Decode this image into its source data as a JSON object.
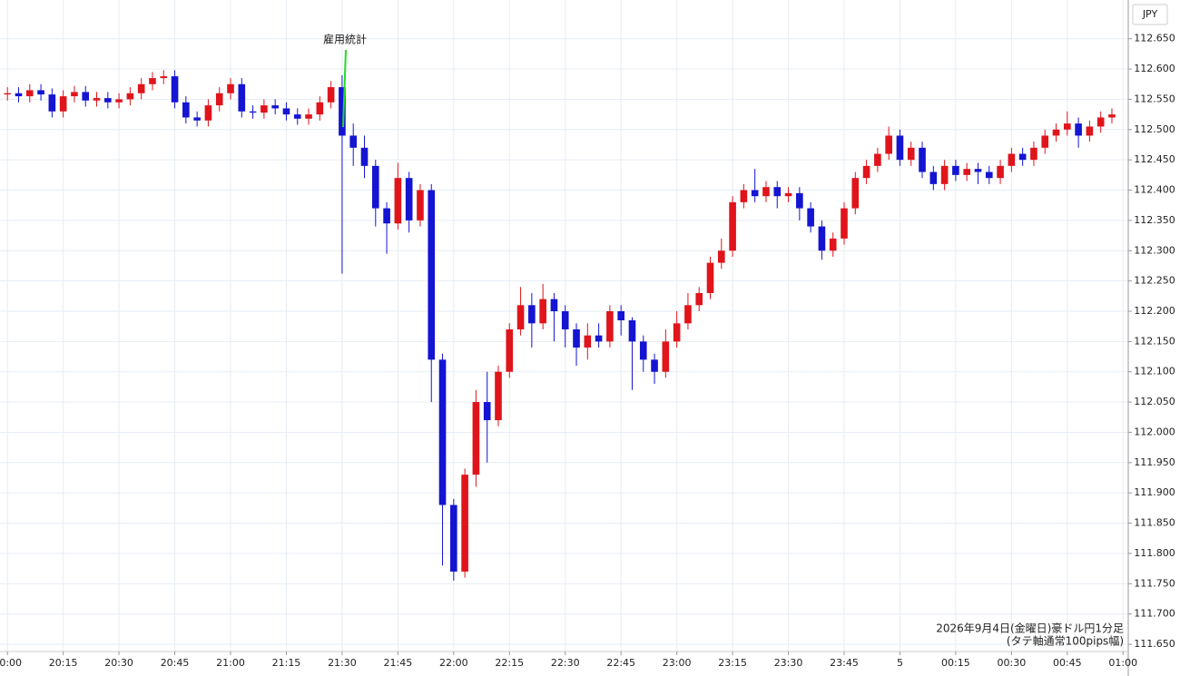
{
  "chart_data": {
    "type": "candlestick",
    "annotation": "雇用統計",
    "footnote": [
      "2026年9月4日(金曜日)豪ドル円1分足",
      "(タテ軸通常100pips幅)"
    ],
    "currency": "JPY",
    "up_color": "#e0141b",
    "down_color": "#1414d2",
    "annotation_color": "#22dd22",
    "grid": true,
    "xlim": [
      -2,
      301.4
    ],
    "ylim": [
      111.638,
      112.714
    ],
    "xticks": [
      {
        "value": 0,
        "label": "20:00"
      },
      {
        "value": 15,
        "label": "20:15"
      },
      {
        "value": 30,
        "label": "20:30"
      },
      {
        "value": 45,
        "label": "20:45"
      },
      {
        "value": 60,
        "label": "21:00"
      },
      {
        "value": 75,
        "label": "21:15"
      },
      {
        "value": 90,
        "label": "21:30"
      },
      {
        "value": 105,
        "label": "21:45"
      },
      {
        "value": 120,
        "label": "22:00"
      },
      {
        "value": 135,
        "label": "22:15"
      },
      {
        "value": 150,
        "label": "22:30"
      },
      {
        "value": 165,
        "label": "22:45"
      },
      {
        "value": 180,
        "label": "23:00"
      },
      {
        "value": 195,
        "label": "23:15"
      },
      {
        "value": 210,
        "label": "23:30"
      },
      {
        "value": 225,
        "label": "23:45"
      },
      {
        "value": 240,
        "label": "5"
      },
      {
        "value": 255,
        "label": "00:15"
      },
      {
        "value": 270,
        "label": "00:30"
      },
      {
        "value": 285,
        "label": "00:45"
      },
      {
        "value": 300,
        "label": "01:00"
      }
    ],
    "yticks": [
      {
        "value": 111.65,
        "label": "111.650"
      },
      {
        "value": 111.7,
        "label": "111.700"
      },
      {
        "value": 111.75,
        "label": "111.750"
      },
      {
        "value": 111.8,
        "label": "111.800"
      },
      {
        "value": 111.85,
        "label": "111.850"
      },
      {
        "value": 111.9,
        "label": "111.900"
      },
      {
        "value": 111.95,
        "label": "111.950"
      },
      {
        "value": 112.0,
        "label": "112.000"
      },
      {
        "value": 112.05,
        "label": "112.050"
      },
      {
        "value": 112.1,
        "label": "112.100"
      },
      {
        "value": 112.15,
        "label": "112.150"
      },
      {
        "value": 112.2,
        "label": "112.200"
      },
      {
        "value": 112.25,
        "label": "112.250"
      },
      {
        "value": 112.3,
        "label": "112.300"
      },
      {
        "value": 112.35,
        "label": "112.350"
      },
      {
        "value": 112.4,
        "label": "112.400"
      },
      {
        "value": 112.45,
        "label": "112.450"
      },
      {
        "value": 112.5,
        "label": "112.500"
      },
      {
        "value": 112.55,
        "label": "112.550"
      },
      {
        "value": 112.6,
        "label": "112.600"
      },
      {
        "value": 112.65,
        "label": "112.650"
      }
    ],
    "x": [
      0,
      3,
      6,
      9,
      12,
      15,
      18,
      21,
      24,
      27,
      30,
      33,
      36,
      39,
      42,
      45,
      48,
      51,
      54,
      57,
      60,
      63,
      66,
      69,
      72,
      75,
      78,
      81,
      84,
      87,
      90,
      93,
      96,
      99,
      102,
      105,
      108,
      111,
      114,
      117,
      120,
      123,
      126,
      129,
      132,
      135,
      138,
      141,
      144,
      147,
      150,
      153,
      156,
      159,
      162,
      165,
      168,
      171,
      174,
      177,
      180,
      183,
      186,
      189,
      192,
      195,
      198,
      201,
      204,
      207,
      210,
      213,
      216,
      219,
      222,
      225,
      228,
      231,
      234,
      237,
      240,
      243,
      246,
      249,
      252,
      255,
      258,
      261,
      264,
      267,
      270,
      273,
      276,
      279,
      282,
      285,
      288,
      291,
      294,
      297
    ],
    "open": [
      112.558,
      112.56,
      112.555,
      112.565,
      112.558,
      112.53,
      112.555,
      112.562,
      112.548,
      112.552,
      112.545,
      112.55,
      112.56,
      112.575,
      112.585,
      112.588,
      112.545,
      112.52,
      112.515,
      112.54,
      112.56,
      112.575,
      112.53,
      112.528,
      112.54,
      112.535,
      112.525,
      112.518,
      112.525,
      112.545,
      112.57,
      112.49,
      112.47,
      112.44,
      112.37,
      112.345,
      112.42,
      112.35,
      112.4,
      112.12,
      111.88,
      111.77,
      111.93,
      112.05,
      112.02,
      112.1,
      112.17,
      112.21,
      112.18,
      112.22,
      112.2,
      112.17,
      112.14,
      112.16,
      112.15,
      112.2,
      112.185,
      112.15,
      112.12,
      112.1,
      112.15,
      112.18,
      112.21,
      112.23,
      112.28,
      112.3,
      112.38,
      112.4,
      112.39,
      112.405,
      112.39,
      112.395,
      112.37,
      112.34,
      112.3,
      112.32,
      112.37,
      112.42,
      112.44,
      112.46,
      112.49,
      112.45,
      112.47,
      112.43,
      112.41,
      112.44,
      112.425,
      112.435,
      112.43,
      112.42,
      112.44,
      112.46,
      112.45,
      112.47,
      112.49,
      112.5,
      112.51,
      112.49,
      112.505,
      112.52
    ],
    "high": [
      112.57,
      112.57,
      112.575,
      112.575,
      112.568,
      112.565,
      112.572,
      112.572,
      112.562,
      112.562,
      112.56,
      112.57,
      112.585,
      112.595,
      112.598,
      112.598,
      112.555,
      112.53,
      112.55,
      112.57,
      112.585,
      112.585,
      112.54,
      112.55,
      112.55,
      112.545,
      112.535,
      112.535,
      112.555,
      112.58,
      112.59,
      112.51,
      112.49,
      112.45,
      112.38,
      112.445,
      112.43,
      112.41,
      112.41,
      112.13,
      111.89,
      111.94,
      112.07,
      112.1,
      112.11,
      112.18,
      112.24,
      112.23,
      112.245,
      112.23,
      112.21,
      112.18,
      112.18,
      112.18,
      112.21,
      112.21,
      112.19,
      112.16,
      112.13,
      112.17,
      112.2,
      112.23,
      112.24,
      112.29,
      112.32,
      112.39,
      112.41,
      112.435,
      112.415,
      112.415,
      112.405,
      112.405,
      112.38,
      112.35,
      112.33,
      112.38,
      112.43,
      112.45,
      112.47,
      112.505,
      112.5,
      112.48,
      112.48,
      112.44,
      112.45,
      112.45,
      112.445,
      112.445,
      112.44,
      112.45,
      112.47,
      112.47,
      112.48,
      112.5,
      112.51,
      112.53,
      112.52,
      112.515,
      112.53,
      112.535
    ],
    "low": [
      112.548,
      112.545,
      112.545,
      112.548,
      112.52,
      112.52,
      112.545,
      112.538,
      112.538,
      112.535,
      112.535,
      112.54,
      112.55,
      112.565,
      112.575,
      112.535,
      112.51,
      112.505,
      112.505,
      112.53,
      112.55,
      112.52,
      112.518,
      112.518,
      112.525,
      112.515,
      112.508,
      112.508,
      112.515,
      112.535,
      112.262,
      112.44,
      112.42,
      112.34,
      112.295,
      112.335,
      112.33,
      112.34,
      112.05,
      111.78,
      111.755,
      111.76,
      111.91,
      111.95,
      112.01,
      112.09,
      112.16,
      112.14,
      112.17,
      112.15,
      112.14,
      112.11,
      112.12,
      112.14,
      112.14,
      112.16,
      112.07,
      112.1,
      112.08,
      112.09,
      112.14,
      112.17,
      112.2,
      112.22,
      112.27,
      112.29,
      112.37,
      112.38,
      112.38,
      112.37,
      112.38,
      112.35,
      112.33,
      112.285,
      112.29,
      112.31,
      112.36,
      112.41,
      112.43,
      112.45,
      112.44,
      112.44,
      112.42,
      112.4,
      112.4,
      112.415,
      112.415,
      112.41,
      112.41,
      112.41,
      112.43,
      112.44,
      112.44,
      112.46,
      112.48,
      112.49,
      112.47,
      112.48,
      112.495,
      112.51
    ],
    "close": [
      112.56,
      112.555,
      112.565,
      112.558,
      112.53,
      112.555,
      112.562,
      112.548,
      112.552,
      112.545,
      112.55,
      112.56,
      112.575,
      112.585,
      112.588,
      112.545,
      112.52,
      112.515,
      112.54,
      112.56,
      112.575,
      112.53,
      112.528,
      112.54,
      112.535,
      112.525,
      112.518,
      112.525,
      112.545,
      112.57,
      112.49,
      112.47,
      112.44,
      112.37,
      112.345,
      112.42,
      112.35,
      112.4,
      112.12,
      111.88,
      111.77,
      111.93,
      112.05,
      112.02,
      112.1,
      112.17,
      112.21,
      112.18,
      112.22,
      112.2,
      112.17,
      112.14,
      112.16,
      112.15,
      112.2,
      112.185,
      112.15,
      112.12,
      112.1,
      112.15,
      112.18,
      112.21,
      112.23,
      112.28,
      112.3,
      112.38,
      112.4,
      112.39,
      112.405,
      112.39,
      112.395,
      112.37,
      112.34,
      112.3,
      112.32,
      112.37,
      112.42,
      112.44,
      112.46,
      112.49,
      112.45,
      112.47,
      112.43,
      112.41,
      112.44,
      112.425,
      112.435,
      112.43,
      112.42,
      112.44,
      112.46,
      112.45,
      112.47,
      112.49,
      112.5,
      112.51,
      112.49,
      112.505,
      112.52,
      112.525
    ]
  }
}
